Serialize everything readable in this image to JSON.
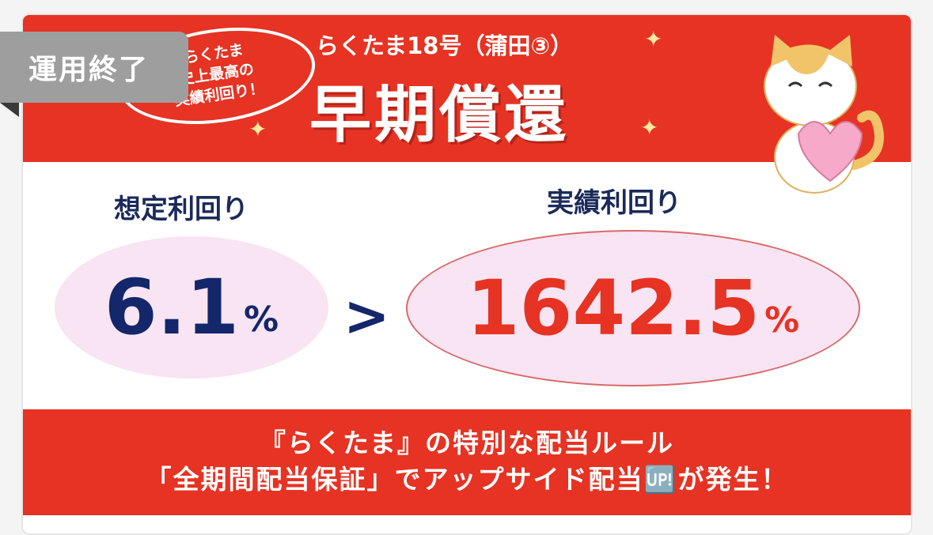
{
  "badge": {
    "label": "運用終了"
  },
  "banner": {
    "bubble_lines": [
      "らくたま",
      "史上最高の",
      "実績利回り！"
    ],
    "subtitle": "らくたま18号（蒲田③）",
    "title": "早期償還"
  },
  "yields": {
    "expected_label": "想定利回り",
    "expected_value": "6.1",
    "actual_label": "実績利回り",
    "actual_value": "1642.5",
    "unit": "%",
    "comparison": ">"
  },
  "footer": {
    "line1": "『らくたま』の特別な配当ルール",
    "line2": "「全期間配当保証」でアップサイド配当🆙が発生！"
  },
  "colors": {
    "brand_red": "#e63323",
    "navy": "#13276a",
    "pink": "#f8e4f2",
    "badge_gray": "#9e9e9e"
  }
}
